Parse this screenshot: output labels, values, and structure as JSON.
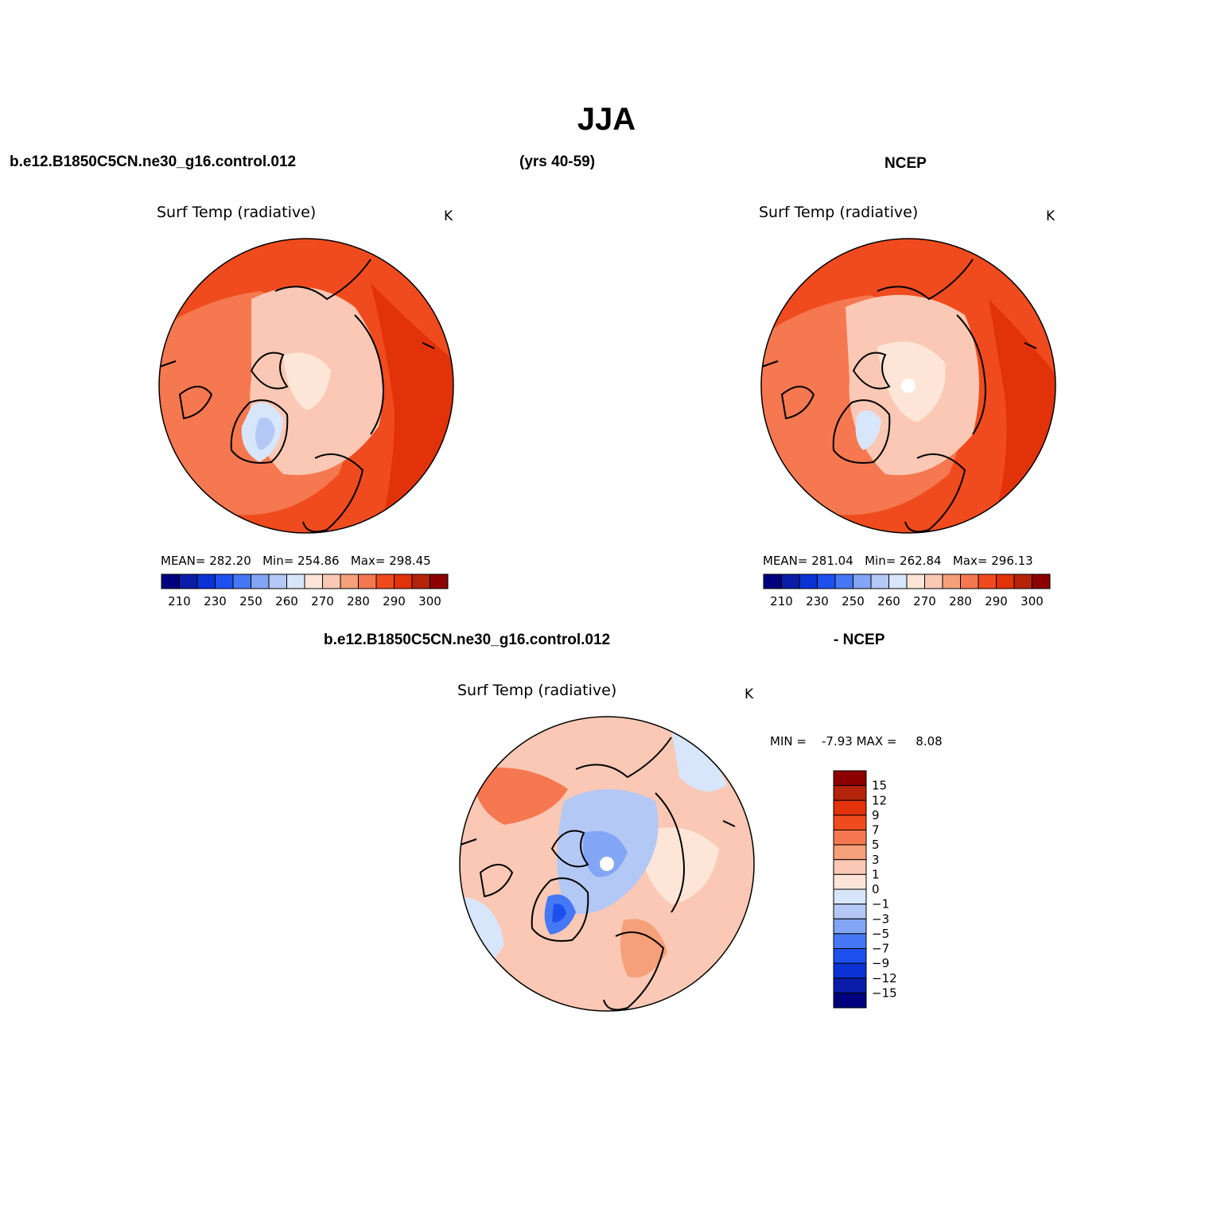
{
  "main_title": "JJA",
  "header": {
    "case_name": "b.e12.B1850C5CN.ne30_g16.control.012",
    "years": "(yrs 40-59)",
    "obs_name": "NCEP",
    "diff_case_name": "b.e12.B1850C5CN.ne30_g16.control.012",
    "diff_obs_name": "- NCEP"
  },
  "panels": [
    {
      "id": "model",
      "title": "Surf Temp (radiative)",
      "units": "K",
      "stats": {
        "mean_label": "MEAN=",
        "mean": "282.20",
        "min_label": "Min=",
        "min": "254.86",
        "max_label": "Max=",
        "max": "298.45"
      },
      "colorbar": {
        "colors": [
          "#00007f",
          "#0a1da8",
          "#0a32d4",
          "#1e50f0",
          "#4678f5",
          "#82a5f5",
          "#b4c8f5",
          "#d7e6fa",
          "#fde6d7",
          "#fac8b4",
          "#f5a078",
          "#f57850",
          "#f04b1e",
          "#e1320a",
          "#b4230a",
          "#8c0000"
        ],
        "labels": [
          "210",
          "230",
          "250",
          "260",
          "270",
          "280",
          "290",
          "300"
        ]
      }
    },
    {
      "id": "obs",
      "title": "Surf Temp (radiative)",
      "units": "K",
      "stats": {
        "mean_label": "MEAN=",
        "mean": "281.04",
        "min_label": "Min=",
        "min": "262.84",
        "max_label": "Max=",
        "max": "296.13"
      },
      "colorbar": {
        "colors": [
          "#00007f",
          "#0a1da8",
          "#0a32d4",
          "#1e50f0",
          "#4678f5",
          "#82a5f5",
          "#b4c8f5",
          "#d7e6fa",
          "#fde6d7",
          "#fac8b4",
          "#f5a078",
          "#f57850",
          "#f04b1e",
          "#e1320a",
          "#b4230a",
          "#8c0000"
        ],
        "labels": [
          "210",
          "230",
          "250",
          "260",
          "270",
          "280",
          "290",
          "300"
        ]
      }
    },
    {
      "id": "diff",
      "title": "Surf Temp (radiative)",
      "units": "K",
      "stats": {
        "min_label": "MIN =",
        "min": "-7.93",
        "max_label": "MAX =",
        "max": "8.08"
      },
      "colorbar": {
        "colors": [
          "#8c0000",
          "#b4230a",
          "#e1320a",
          "#f04b1e",
          "#f57850",
          "#f5a078",
          "#fac8b4",
          "#fde6d7",
          "#d7e6fa",
          "#b4c8f5",
          "#82a5f5",
          "#4678f5",
          "#1e50f0",
          "#0a32d4",
          "#0a1da8",
          "#00007f"
        ],
        "labels": [
          "15",
          "12",
          "9",
          "7",
          "5",
          "3",
          "1",
          "0",
          "−1",
          "−3",
          "−5",
          "−7",
          "−9",
          "−12",
          "−15"
        ]
      }
    }
  ]
}
